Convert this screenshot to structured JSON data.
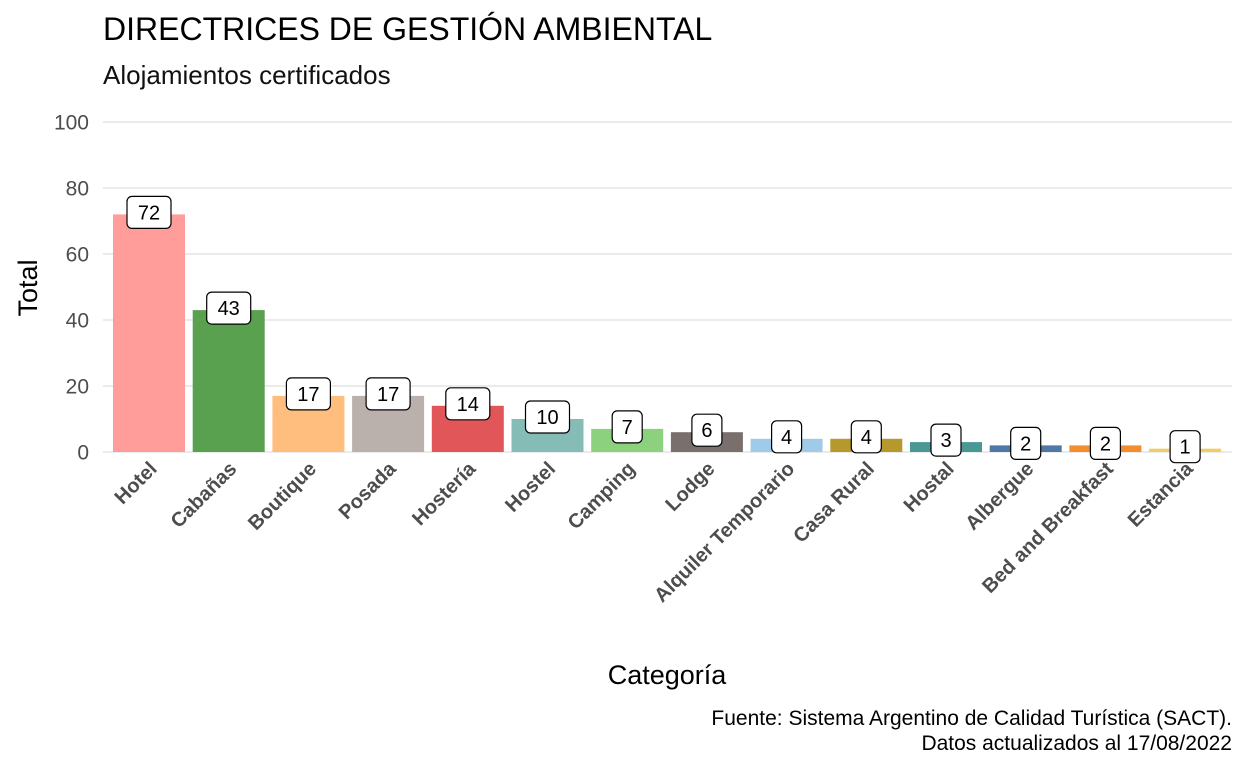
{
  "chart_data": {
    "type": "bar",
    "title": "DIRECTRICES DE GESTIÓN AMBIENTAL",
    "subtitle": "Alojamientos certificados",
    "xlabel": "Categoría",
    "ylabel": "Total",
    "ylim": [
      0,
      100
    ],
    "yticks": [
      "0",
      "20",
      "40",
      "60",
      "80",
      "100"
    ],
    "grid": true,
    "legend": "none",
    "categories": [
      "Hotel",
      "Cabañas",
      "Boutique",
      "Posada",
      "Hostería",
      "Hostel",
      "Camping",
      "Lodge",
      "Alquiler Temporario",
      "Casa Rural",
      "Hostal",
      "Albergue",
      "Bed and Breakfast",
      "Estancia"
    ],
    "values": [
      72,
      43,
      17,
      17,
      14,
      10,
      7,
      6,
      4,
      4,
      3,
      2,
      2,
      1
    ],
    "colors": [
      "#ff9d9a",
      "#59a14f",
      "#ffbe7d",
      "#bab0ac",
      "#e15759",
      "#86bcb6",
      "#8cd17d",
      "#79706e",
      "#a0cbe8",
      "#b6992d",
      "#499894",
      "#4e79a7",
      "#f28e2b",
      "#f1ce63"
    ],
    "caption_lines": [
      "Fuente: Sistema Argentino de Calidad Turística (SACT).",
      "Datos actualizados al 17/08/2022"
    ]
  }
}
